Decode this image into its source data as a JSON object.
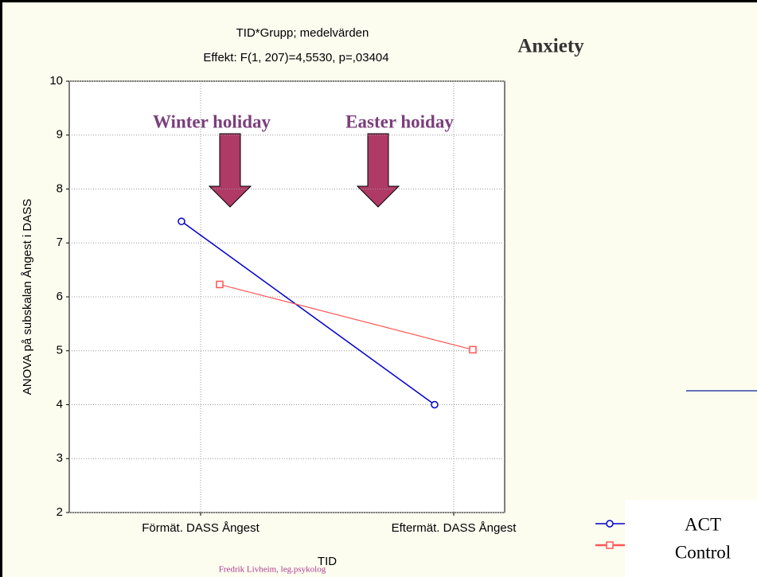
{
  "chart_data": {
    "type": "line",
    "title": "TID*Grupp; medelvärden",
    "subtitle": "Effekt: F(1, 207)=4,5530, p=,03404",
    "annotations": [
      "Anxiety",
      "Winter holiday",
      "Easter hoiday"
    ],
    "y_label": "ANOVA på subskalan Ångest i DASS",
    "x_label": "TID",
    "footer": "Fredrik Livheim, leg.psykolog",
    "categories": [
      "Förmät. DASS Ångest",
      "Eftermät. DASS Ångest"
    ],
    "series": [
      {
        "name": "ACT",
        "color": "#0000cc",
        "marker": "circle",
        "values": [
          7.4,
          4.0
        ]
      },
      {
        "name": "Control",
        "color": "#ff5555",
        "marker": "square",
        "values": [
          6.23,
          5.02
        ]
      }
    ],
    "ylim": [
      2,
      10
    ],
    "yticks": [
      2,
      3,
      4,
      5,
      6,
      7,
      8,
      9,
      10
    ],
    "grid": true
  }
}
